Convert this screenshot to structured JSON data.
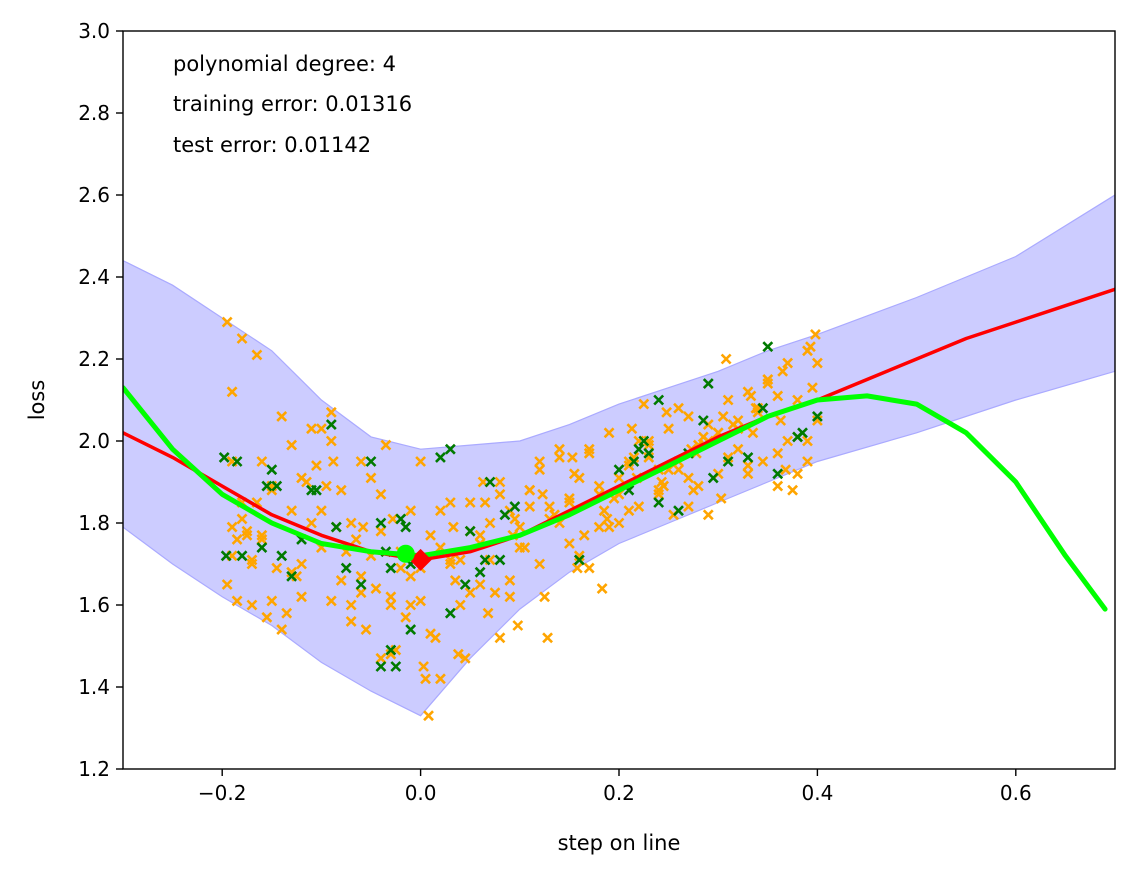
{
  "chart_data": {
    "type": "scatter",
    "xlabel": "step on line",
    "ylabel": "loss",
    "xlim": [
      -0.3,
      0.7
    ],
    "ylim": [
      1.2,
      3.0
    ],
    "xticks": [
      -0.2,
      0.0,
      0.2,
      0.4,
      0.6
    ],
    "xtick_labels": [
      "−0.2",
      "0.0",
      "0.2",
      "0.4",
      "0.6"
    ],
    "yticks": [
      1.2,
      1.4,
      1.6,
      1.8,
      2.0,
      2.2,
      2.4,
      2.6,
      2.8,
      3.0
    ],
    "ytick_labels": [
      "1.2",
      "1.4",
      "1.6",
      "1.8",
      "2.0",
      "2.2",
      "2.4",
      "2.6",
      "2.8",
      "3.0"
    ],
    "grid": false,
    "annotations": [
      "polynomial degree: 4",
      "training error: 0.01316",
      "test error: 0.01142"
    ],
    "colors": {
      "train_points": "#ffa500",
      "test_points": "#007a00",
      "band_fill": "#ccccff",
      "band_edge": "#aaaaff",
      "red_curve": "#ff0000",
      "green_curve": "#00ff00",
      "red_marker": "#ff0000",
      "green_marker": "#00ff00"
    },
    "confidence_band": {
      "x": [
        -0.3,
        -0.25,
        -0.2,
        -0.15,
        -0.1,
        -0.05,
        0.0,
        0.05,
        0.1,
        0.15,
        0.2,
        0.25,
        0.3,
        0.35,
        0.4,
        0.5,
        0.6,
        0.7
      ],
      "upper": [
        2.44,
        2.38,
        2.3,
        2.22,
        2.1,
        2.01,
        1.98,
        1.99,
        2.0,
        2.04,
        2.09,
        2.13,
        2.17,
        2.22,
        2.26,
        2.35,
        2.45,
        2.6
      ],
      "lower": [
        1.79,
        1.7,
        1.62,
        1.55,
        1.46,
        1.39,
        1.33,
        1.47,
        1.59,
        1.68,
        1.75,
        1.8,
        1.85,
        1.9,
        1.95,
        2.02,
        2.1,
        2.17
      ]
    },
    "series": [
      {
        "kind": "line",
        "color": "#ff0000",
        "x": [
          -0.3,
          -0.25,
          -0.2,
          -0.15,
          -0.1,
          -0.05,
          0.0,
          0.05,
          0.1,
          0.15,
          0.2,
          0.25,
          0.3,
          0.35,
          0.4,
          0.45,
          0.5,
          0.55,
          0.6,
          0.65,
          0.7
        ],
        "y": [
          2.02,
          1.96,
          1.89,
          1.82,
          1.77,
          1.73,
          1.71,
          1.73,
          1.77,
          1.83,
          1.89,
          1.95,
          2.01,
          2.06,
          2.1,
          2.15,
          2.2,
          2.25,
          2.29,
          2.33,
          2.37
        ]
      },
      {
        "kind": "line",
        "color": "#00ff00",
        "x": [
          -0.3,
          -0.25,
          -0.2,
          -0.15,
          -0.1,
          -0.05,
          0.0,
          0.05,
          0.1,
          0.15,
          0.2,
          0.25,
          0.3,
          0.35,
          0.4,
          0.45,
          0.5,
          0.55,
          0.6,
          0.65,
          0.69
        ],
        "y": [
          2.13,
          1.98,
          1.87,
          1.8,
          1.75,
          1.73,
          1.72,
          1.74,
          1.77,
          1.82,
          1.88,
          1.94,
          2.0,
          2.06,
          2.1,
          2.11,
          2.09,
          2.02,
          1.9,
          1.72,
          1.59
        ]
      },
      {
        "kind": "marker",
        "color": "#ff0000",
        "x": [
          0.0
        ],
        "y": [
          1.71
        ]
      },
      {
        "kind": "marker",
        "color": "#00ff00",
        "x": [
          -0.015
        ],
        "y": [
          1.725
        ]
      },
      {
        "kind": "points",
        "color": "#ffa500",
        "x": [
          -0.195,
          -0.19,
          -0.185,
          -0.18,
          -0.175,
          -0.17,
          -0.165,
          -0.16,
          -0.15,
          -0.14,
          -0.13,
          -0.12,
          -0.11,
          -0.1,
          -0.09,
          -0.08,
          -0.07,
          -0.06,
          -0.05,
          -0.04,
          -0.03,
          -0.02,
          -0.01,
          0.0,
          0.01,
          0.02,
          0.03,
          0.04,
          0.05,
          0.06,
          0.07,
          0.08,
          0.09,
          0.1,
          0.11,
          0.12,
          0.13,
          0.14,
          0.15,
          0.16,
          0.17,
          0.18,
          0.19,
          0.2,
          0.21,
          0.22,
          0.23,
          0.24,
          0.25,
          0.26,
          0.27,
          0.28,
          0.29,
          0.3,
          0.31,
          0.32,
          0.33,
          0.34,
          0.35,
          0.36,
          0.37,
          0.38,
          0.39,
          0.4,
          -0.19,
          -0.17,
          -0.15,
          -0.12,
          -0.09,
          -0.06,
          -0.03,
          0.0,
          0.03,
          0.06,
          0.09,
          0.12,
          0.15,
          0.18,
          0.21,
          0.24,
          0.27,
          0.3,
          0.33,
          0.36,
          0.39,
          -0.18,
          -0.16,
          -0.13,
          -0.1,
          -0.07,
          -0.04,
          -0.01,
          0.02,
          0.05,
          0.08,
          0.11,
          0.14,
          0.17,
          0.2,
          0.23,
          0.26,
          0.29,
          0.32,
          0.35,
          0.38,
          -0.19,
          -0.155,
          -0.11,
          -0.08,
          -0.05,
          -0.02,
          0.01,
          0.04,
          0.07,
          0.1,
          0.13,
          0.16,
          0.19,
          0.22,
          0.25,
          0.28,
          0.31,
          0.34,
          0.37,
          0.4,
          -0.175,
          -0.145,
          -0.115,
          -0.085,
          -0.055,
          -0.025,
          0.005,
          0.035,
          0.065,
          0.095,
          0.125,
          0.155,
          0.185,
          0.215,
          0.245,
          0.275,
          0.305,
          0.335,
          0.365,
          0.395,
          -0.195,
          -0.165,
          -0.135,
          -0.105,
          -0.075,
          -0.045,
          -0.015,
          0.015,
          0.045,
          0.075,
          0.105,
          0.135,
          0.165,
          0.195,
          0.225,
          0.255,
          0.285,
          0.315,
          0.345,
          0.375,
          -0.185,
          -0.14,
          -0.095,
          -0.065,
          -0.035,
          0.008,
          0.038,
          0.068,
          0.098,
          0.128,
          0.158,
          0.188,
          0.218,
          0.248,
          0.278,
          0.308,
          0.338,
          0.368,
          0.398,
          -0.17,
          -0.125,
          -0.088,
          -0.058,
          -0.028,
          0.003,
          0.033,
          0.063,
          0.093,
          0.123,
          0.153,
          0.183,
          0.213,
          0.243,
          0.273,
          0.303,
          0.333,
          0.363,
          0.393,
          -0.19,
          -0.16,
          -0.13,
          -0.1,
          -0.07,
          -0.04,
          -0.01,
          0.02,
          0.05,
          0.08,
          0.11,
          0.14,
          0.17,
          0.2,
          0.23,
          0.26,
          0.29,
          0.32,
          0.35,
          0.38,
          -0.18,
          -0.15,
          -0.12,
          -0.09,
          -0.06,
          -0.03,
          0.0,
          0.03,
          0.06,
          0.09,
          0.12,
          0.15,
          0.18,
          0.21,
          0.24,
          0.27,
          0.3,
          0.33,
          0.36,
          0.39
        ],
        "y": [
          2.29,
          2.12,
          1.76,
          1.85,
          1.78,
          1.7,
          2.21,
          1.95,
          1.89,
          2.06,
          1.83,
          1.91,
          2.03,
          1.74,
          2.07,
          1.88,
          1.8,
          1.67,
          1.91,
          1.78,
          1.6,
          1.73,
          1.83,
          1.69,
          1.77,
          1.83,
          1.7,
          1.71,
          1.78,
          1.75,
          1.8,
          1.87,
          1.83,
          1.79,
          1.88,
          1.93,
          1.84,
          1.98,
          1.86,
          1.91,
          1.97,
          1.89,
          2.02,
          1.91,
          1.94,
          2.0,
          1.96,
          1.93,
          2.03,
          1.95,
          2.06,
          1.99,
          2.04,
          2.02,
          2.1,
          2.05,
          2.12,
          2.08,
          2.15,
          2.11,
          2.19,
          2.1,
          2.22,
          2.19,
          1.72,
          1.6,
          1.88,
          1.62,
          1.61,
          1.95,
          1.62,
          1.61,
          1.71,
          1.65,
          1.62,
          1.7,
          1.75,
          1.79,
          1.83,
          1.88,
          1.84,
          1.92,
          1.94,
          1.97,
          1.95,
          2.25,
          1.76,
          1.99,
          1.83,
          1.56,
          1.87,
          1.6,
          1.74,
          1.85,
          1.9,
          1.84,
          1.96,
          1.98,
          1.87,
          1.99,
          2.08,
          2.0,
          2.03,
          2.14,
          2.01,
          1.95,
          1.57,
          1.8,
          1.66,
          1.72,
          1.69,
          1.53,
          1.6,
          1.71,
          1.74,
          1.81,
          1.72,
          1.79,
          1.84,
          1.93,
          1.89,
          1.96,
          2.07,
          2.0,
          2.05,
          1.77,
          1.69,
          1.9,
          1.79,
          1.54,
          1.49,
          1.42,
          1.66,
          1.85,
          1.81,
          1.62,
          1.92,
          1.83,
          1.96,
          1.89,
          1.88,
          2.06,
          2.02,
          2.17,
          2.13,
          1.65,
          1.85,
          1.58,
          1.94,
          1.73,
          1.64,
          1.57,
          1.52,
          1.47,
          1.63,
          1.74,
          1.82,
          1.77,
          1.86,
          2.09,
          1.82,
          2.01,
          2.04,
          1.95,
          1.88,
          1.61,
          1.54,
          1.89,
          1.76,
          1.99,
          1.33,
          1.48,
          1.58,
          1.55,
          1.52,
          1.69,
          1.81,
          1.91,
          2.07,
          1.97,
          2.2,
          2.08,
          1.93,
          2.26,
          1.71,
          1.67,
          1.95,
          1.79,
          1.81,
          1.45,
          1.79,
          1.9,
          1.77,
          1.87,
          1.96,
          1.64,
          2.03,
          1.9,
          1.98,
          1.86,
          2.11,
          2.05,
          2.23,
          1.79,
          1.77,
          1.68,
          2.03,
          1.6,
          1.47,
          1.67,
          1.42,
          1.63,
          1.52,
          1.88,
          1.8,
          1.69,
          1.8,
          2.0,
          1.93,
          1.82,
          1.98,
          2.15,
          1.92,
          1.81,
          1.61,
          1.7,
          2.0,
          1.63,
          1.48,
          1.95,
          1.85,
          1.77,
          1.66,
          1.95,
          1.85,
          1.87,
          1.95,
          1.87,
          1.91,
          2.02,
          1.92,
          1.89,
          2.0
        ]
      },
      {
        "kind": "points",
        "color": "#007a00",
        "x": [
          -0.198,
          -0.196,
          -0.185,
          -0.18,
          -0.16,
          -0.155,
          -0.15,
          -0.145,
          -0.14,
          -0.13,
          -0.12,
          -0.11,
          -0.105,
          -0.09,
          -0.085,
          -0.075,
          -0.06,
          -0.05,
          -0.04,
          -0.035,
          -0.03,
          -0.025,
          -0.02,
          -0.015,
          -0.01,
          0.03,
          0.03,
          0.045,
          0.05,
          0.06,
          0.065,
          0.07,
          0.08,
          0.085,
          0.095,
          0.16,
          0.2,
          0.21,
          0.215,
          0.22,
          0.225,
          0.23,
          0.24,
          0.26,
          0.27,
          0.285,
          0.29,
          0.295,
          0.33,
          0.345,
          0.35,
          0.36,
          0.38,
          0.385,
          0.4,
          -0.04,
          -0.03,
          -0.01,
          0.02,
          0.24,
          0.31
        ],
        "y": [
          1.96,
          1.72,
          1.95,
          1.72,
          1.74,
          1.89,
          1.93,
          1.89,
          1.72,
          1.67,
          1.76,
          1.88,
          1.88,
          2.04,
          1.79,
          1.69,
          1.65,
          1.95,
          1.8,
          1.73,
          1.69,
          1.45,
          1.81,
          1.79,
          1.54,
          1.58,
          1.98,
          1.65,
          1.78,
          1.68,
          1.71,
          1.9,
          1.71,
          1.82,
          1.84,
          1.71,
          1.93,
          1.88,
          1.95,
          1.98,
          2.0,
          1.97,
          1.85,
          1.83,
          1.97,
          2.05,
          2.14,
          1.91,
          1.96,
          2.08,
          2.23,
          1.92,
          2.01,
          2.02,
          2.06,
          1.45,
          1.49,
          1.7,
          1.96,
          2.1,
          1.95
        ]
      }
    ]
  }
}
